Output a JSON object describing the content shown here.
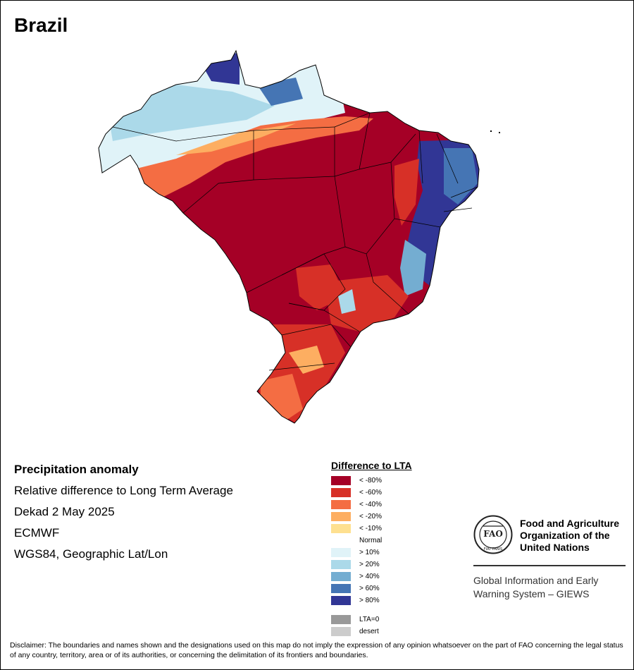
{
  "title": "Brazil",
  "info": {
    "heading": "Precipitation anomaly",
    "line1": "Relative difference to Long Term Average",
    "line2": "Dekad 2 May 2025",
    "line3": "ECMWF",
    "line4": "WGS84, Geographic Lat/Lon"
  },
  "legend": {
    "title": "Difference to LTA",
    "items": [
      {
        "label": "< -80%",
        "color": "#a50026"
      },
      {
        "label": "< -60%",
        "color": "#d73027"
      },
      {
        "label": "< -40%",
        "color": "#f46d43"
      },
      {
        "label": "< -20%",
        "color": "#fdae61"
      },
      {
        "label": "< -10%",
        "color": "#fee090"
      },
      {
        "label": "Normal",
        "color": "#ffffff"
      },
      {
        "label": "> 10%",
        "color": "#e0f3f8"
      },
      {
        "label": "> 20%",
        "color": "#abd9e9"
      },
      {
        "label": "> 40%",
        "color": "#74add1"
      },
      {
        "label": "> 60%",
        "color": "#4575b4"
      },
      {
        "label": "> 80%",
        "color": "#313695"
      }
    ],
    "extra": [
      {
        "label": "LTA=0",
        "color": "#999999"
      },
      {
        "label": "desert",
        "color": "#cccccc"
      }
    ]
  },
  "fao": {
    "logo_letters": "FAO",
    "logo_motto": "FIAT PANIS",
    "name_line1": "Food and Agriculture",
    "name_line2": "Organization of the",
    "name_line3": "United Nations",
    "giews_line1": "Global Information and Early",
    "giews_line2": "Warning System – GIEWS"
  },
  "disclaimer": "Disclaimer: The boundaries and names shown and the designations used on this map do not imply the expression of any opinion whatsoever on the part of FAO concerning the legal status of any country, territory, area or of its authorities, or concerning the delimitation of its frontiers and boundaries."
}
